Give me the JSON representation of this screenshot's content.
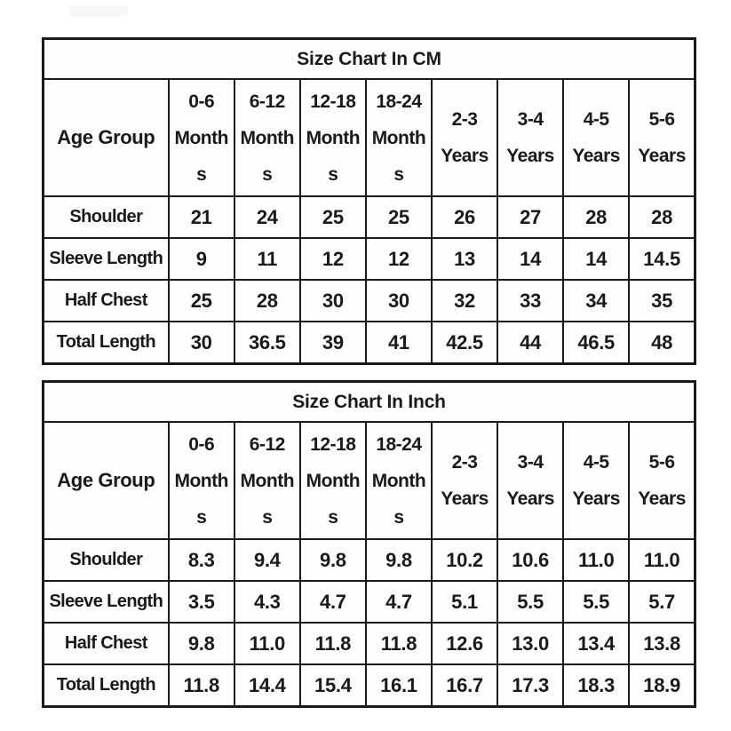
{
  "colors": {
    "background": "#ffffff",
    "text": "#1a1a1a",
    "border": "#1a1a1a"
  },
  "cm_table": {
    "title": "Size Chart In CM",
    "corner_label": "Age Group",
    "columns": [
      {
        "label": "0-6 Months",
        "lines": [
          "0-6",
          "Month",
          "s"
        ]
      },
      {
        "label": "6-12 Months",
        "lines": [
          "6-12",
          "Month",
          "s"
        ]
      },
      {
        "label": "12-18 Months",
        "lines": [
          "12-18",
          "Month",
          "s"
        ]
      },
      {
        "label": "18-24 Months",
        "lines": [
          "18-24",
          "Month",
          "s"
        ]
      },
      {
        "label": "2-3 Years",
        "lines": [
          "2-3",
          "Years"
        ]
      },
      {
        "label": "3-4 Years",
        "lines": [
          "3-4",
          "Years"
        ]
      },
      {
        "label": "4-5 Years",
        "lines": [
          "4-5",
          "Years"
        ]
      },
      {
        "label": "5-6 Years",
        "lines": [
          "5-6",
          "Years"
        ]
      }
    ],
    "rows": [
      {
        "label": "Shoulder",
        "values": [
          "21",
          "24",
          "25",
          "25",
          "26",
          "27",
          "28",
          "28"
        ]
      },
      {
        "label": "Sleeve Length",
        "values": [
          "9",
          "11",
          "12",
          "12",
          "13",
          "14",
          "14",
          "14.5"
        ]
      },
      {
        "label": "Half Chest",
        "values": [
          "25",
          "28",
          "30",
          "30",
          "32",
          "33",
          "34",
          "35"
        ]
      },
      {
        "label": "Total Length",
        "values": [
          "30",
          "36.5",
          "39",
          "41",
          "42.5",
          "44",
          "46.5",
          "48"
        ]
      }
    ]
  },
  "inch_table": {
    "title": "Size Chart In Inch",
    "corner_label": "Age Group",
    "columns": [
      {
        "label": "0-6 Months",
        "lines": [
          "0-6",
          "Month",
          "s"
        ]
      },
      {
        "label": "6-12 Months",
        "lines": [
          "6-12",
          "Month",
          "s"
        ]
      },
      {
        "label": "12-18 Months",
        "lines": [
          "12-18",
          "Month",
          "s"
        ]
      },
      {
        "label": "18-24 Months",
        "lines": [
          "18-24",
          "Month",
          "s"
        ]
      },
      {
        "label": "2-3 Years",
        "lines": [
          "2-3",
          "Years"
        ]
      },
      {
        "label": "3-4 Years",
        "lines": [
          "3-4",
          "Years"
        ]
      },
      {
        "label": "4-5 Years",
        "lines": [
          "4-5",
          "Years"
        ]
      },
      {
        "label": "5-6 Years",
        "lines": [
          "5-6",
          "Years"
        ]
      }
    ],
    "rows": [
      {
        "label": "Shoulder",
        "values": [
          "8.3",
          "9.4",
          "9.8",
          "9.8",
          "10.2",
          "10.6",
          "11.0",
          "11.0"
        ]
      },
      {
        "label": "Sleeve Length",
        "values": [
          "3.5",
          "4.3",
          "4.7",
          "4.7",
          "5.1",
          "5.5",
          "5.5",
          "5.7"
        ]
      },
      {
        "label": "Half Chest",
        "values": [
          "9.8",
          "11.0",
          "11.8",
          "11.8",
          "12.6",
          "13.0",
          "13.4",
          "13.8"
        ]
      },
      {
        "label": "Total Length",
        "values": [
          "11.8",
          "14.4",
          "15.4",
          "16.1",
          "16.7",
          "17.3",
          "18.3",
          "18.9"
        ]
      }
    ]
  }
}
